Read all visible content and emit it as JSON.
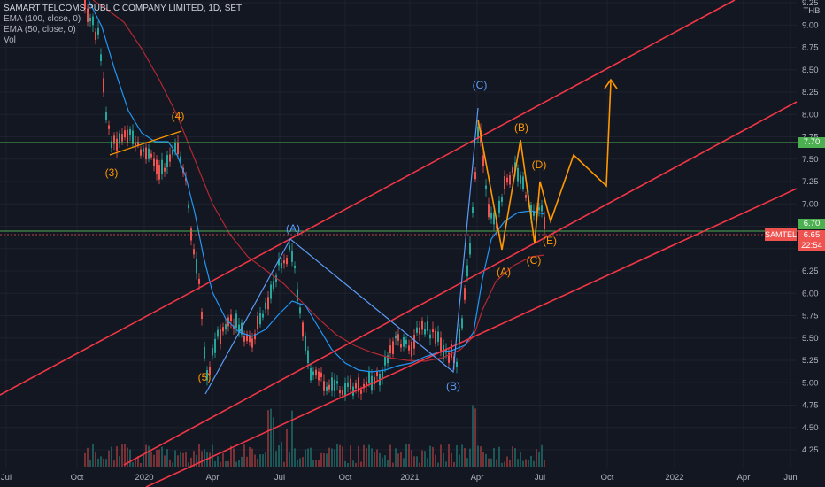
{
  "header": {
    "title": "SAMART TELCOMS PUBLIC COMPANY LIMITED, 1D, SET",
    "indicators": [
      "EMA (100, close, 0)",
      "EMA (50, close, 0)",
      "Vol"
    ]
  },
  "price_axis": {
    "currency": "THB",
    "ticks": [
      "9.25",
      "9.00",
      "8.75",
      "8.50",
      "8.25",
      "8.00",
      "7.75",
      "7.50",
      "7.25",
      "7.00",
      "6.75",
      "6.50",
      "6.25",
      "6.00",
      "5.75",
      "5.50",
      "5.25",
      "5.00",
      "4.75",
      "4.50",
      "4.25"
    ]
  },
  "time_axis": {
    "ticks": [
      "Jul",
      "Oct",
      "2020",
      "Apr",
      "Jul",
      "Oct",
      "2021",
      "Apr",
      "Jul",
      "Oct",
      "2022",
      "Apr",
      "Jun"
    ]
  },
  "badges": {
    "level_high": "7.70",
    "level_low": "6.70",
    "last_price": "6.65",
    "countdown": "22:54",
    "ticker": "SAMTEL"
  },
  "wave_labels": [
    "(3)",
    "(4)",
    "(5)",
    "(A)",
    "(B)",
    "(C)",
    "(A)",
    "(B)",
    "(C)",
    "(D)",
    "(E)"
  ],
  "colors": {
    "background": "#131722",
    "channel": "#f23645",
    "green_level": "#4caf50",
    "wave_orange": "#ff9800",
    "wave_blue": "#5b9cf6",
    "ema100": "#b22833",
    "ema50": "#2196f3",
    "last_price": "#ef5350"
  }
}
